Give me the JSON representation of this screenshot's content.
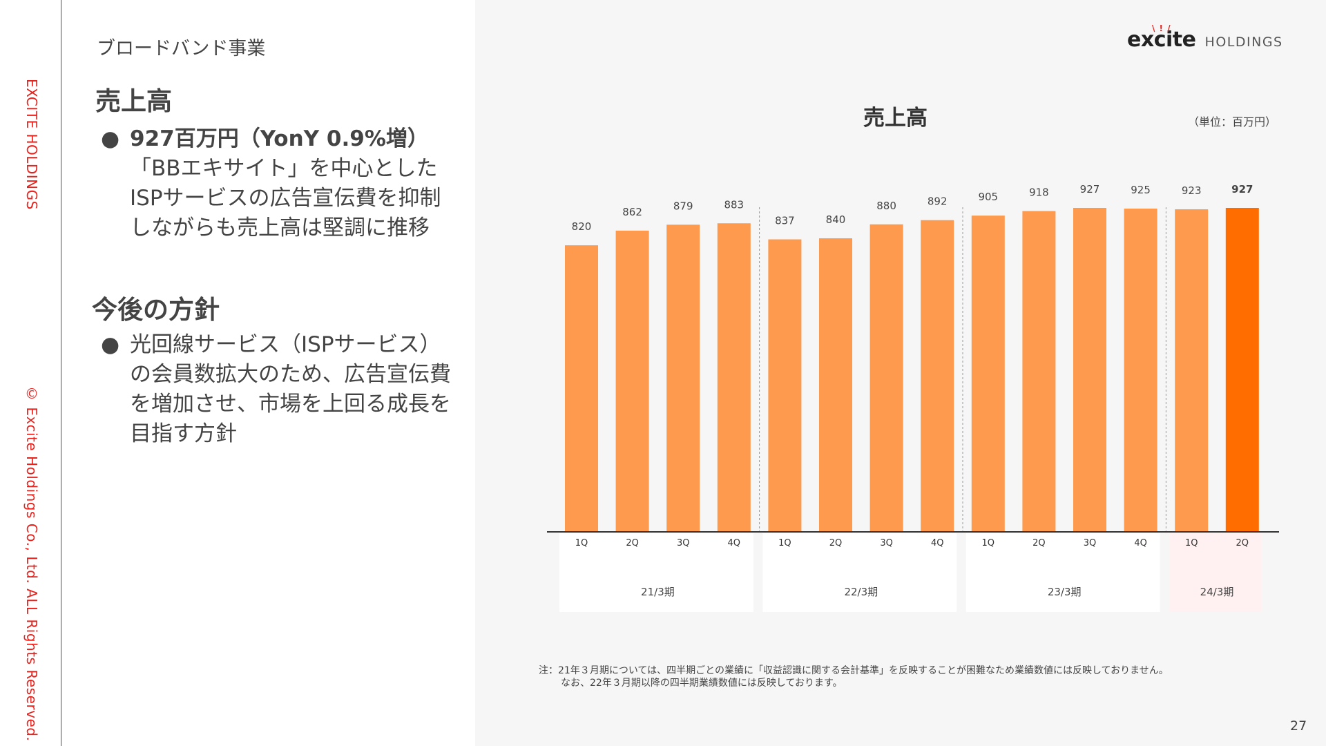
{
  "sidebar": {
    "company": "EXCITE HOLDINGS",
    "copyright": "© Excite Holdings Co., Ltd. ALL Rights Reserved."
  },
  "section_label": "ブロードバンド事業",
  "sales": {
    "heading": "売上高",
    "bullet_strong": "927百万円（YonY 0.9%増）",
    "bullet_lines": [
      "「BBエキサイト」を中心とした",
      "ISPサービスの広告宣伝費を抑制",
      "しながらも売上高は堅調に推移"
    ]
  },
  "policy": {
    "heading": "今後の方針",
    "bullet_lines": [
      "光回線サービス（ISPサービス）",
      "の会員数拡大のため、広告宣伝費",
      "を増加させ、市場を上回る成長を",
      "目指す方針"
    ]
  },
  "logo": {
    "word": "excite",
    "sub": "HOLDINGS"
  },
  "colors": {
    "bar": "#fd9a4d",
    "bar_highlight": "#ff6d00",
    "accent_red": "#e8231e",
    "highlight_group_bg": "#fff1f1"
  },
  "chart_data": {
    "type": "bar",
    "title": "売上高",
    "unit": "（単位：百万円）",
    "categories": [
      "1Q",
      "2Q",
      "3Q",
      "4Q",
      "1Q",
      "2Q",
      "3Q",
      "4Q",
      "1Q",
      "2Q",
      "3Q",
      "4Q",
      "1Q",
      "2Q"
    ],
    "groups": [
      {
        "label": "21/3期",
        "count": 4
      },
      {
        "label": "22/3期",
        "count": 4
      },
      {
        "label": "23/3期",
        "count": 4
      },
      {
        "label": "24/3期",
        "count": 2,
        "highlight": true
      }
    ],
    "values": [
      820,
      862,
      879,
      883,
      837,
      840,
      880,
      892,
      905,
      918,
      927,
      925,
      923,
      927
    ],
    "highlight_index": 13,
    "ylim": [
      0,
      927
    ],
    "grid": false,
    "legend": "none"
  },
  "note": {
    "line1": "注：21年３月期については、四半期ごとの業績に「収益認識に関する会計基準」を反映することが困難なため業績数値には反映しておりません。",
    "line2": "なお、22年３月期以降の四半期業績数値には反映しております。"
  },
  "page_number": "27"
}
